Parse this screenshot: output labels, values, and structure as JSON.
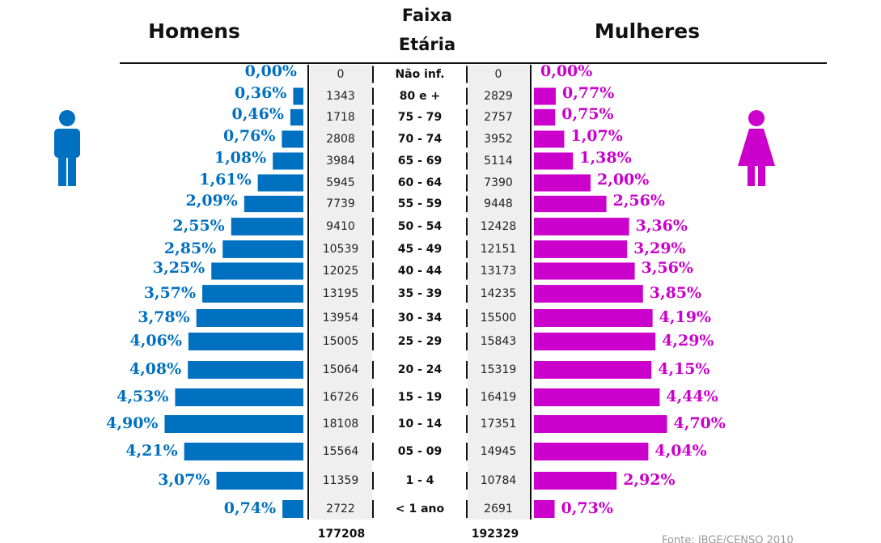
{
  "chart_data": {
    "type": "pyramid",
    "center_title_line1": "Faixa",
    "center_title_line2": "Etária",
    "source": "Fonte: IBGE/CENSO 2010",
    "categories": [
      "Não inf.",
      "80 e +",
      "75 - 79",
      "70 - 74",
      "65 - 69",
      "60 - 64",
      "55 - 59",
      "50 - 54",
      "45 - 49",
      "40 - 44",
      "35 - 39",
      "30 - 34",
      "25 - 29",
      "20 - 24",
      "15 - 19",
      "10 - 14",
      "05 - 09",
      "1 - 4",
      "< 1 ano"
    ],
    "series": [
      {
        "name": "Homens",
        "color": "#0070c0",
        "total": "177208",
        "values": [
          0,
          0.36,
          0.46,
          0.76,
          1.08,
          1.61,
          2.09,
          2.55,
          2.85,
          3.25,
          3.57,
          3.78,
          4.06,
          4.08,
          4.53,
          4.9,
          4.21,
          3.07,
          0.74
        ],
        "value_labels": [
          "0,00%",
          "0,36%",
          "0,46%",
          "0,76%",
          "1,08%",
          "1,61%",
          "2,09%",
          "2,55%",
          "2,85%",
          "3,25%",
          "3,57%",
          "3,78%",
          "4,06%",
          "4,08%",
          "4,53%",
          "4,90%",
          "4,21%",
          "3,07%",
          "0,74%"
        ],
        "counts": [
          "0",
          "1343",
          "1718",
          "2808",
          "3984",
          "5945",
          "7739",
          "9410",
          "10539",
          "12025",
          "13195",
          "13954",
          "15005",
          "15064",
          "16726",
          "18108",
          "15564",
          "11359",
          "2722"
        ]
      },
      {
        "name": "Mulheres",
        "color": "#cc00cc",
        "total": "192329",
        "values": [
          0,
          0.77,
          0.75,
          1.07,
          1.38,
          2.0,
          2.56,
          3.36,
          3.29,
          3.56,
          3.85,
          4.19,
          4.29,
          4.15,
          4.44,
          4.7,
          4.04,
          2.92,
          0.73
        ],
        "value_labels": [
          "0,00%",
          "0,77%",
          "0,75%",
          "1,07%",
          "1,38%",
          "2,00%",
          "2,56%",
          "3,36%",
          "3,29%",
          "3,56%",
          "3,85%",
          "4,19%",
          "4,29%",
          "4,15%",
          "4,44%",
          "4,70%",
          "4,04%",
          "2,92%",
          "0,73%"
        ],
        "counts": [
          "0",
          "2829",
          "2757",
          "3952",
          "5114",
          "7390",
          "9448",
          "12428",
          "12151",
          "13173",
          "14235",
          "15500",
          "15843",
          "15319",
          "16419",
          "17351",
          "14945",
          "10784",
          "2691"
        ]
      }
    ]
  }
}
